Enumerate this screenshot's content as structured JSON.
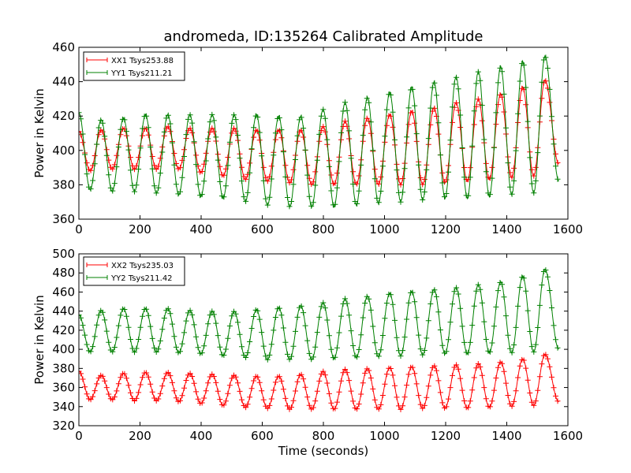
{
  "chart_data": [
    {
      "type": "line",
      "title": "andromeda, ID:135264 Calibrated Amplitude",
      "xlabel": "",
      "ylabel": "Power in Kelvin",
      "xlim": [
        0,
        1600
      ],
      "ylim": [
        360,
        460
      ],
      "xticks": [
        0,
        200,
        400,
        600,
        800,
        1000,
        1200,
        1400,
        1600
      ],
      "yticks": [
        360,
        380,
        400,
        420,
        440,
        460
      ],
      "grid": false,
      "legend_position": "top-left",
      "marker": "plus",
      "period_seconds": 72.6,
      "series": [
        {
          "name": "XX1 Tsys253.88",
          "color": "#ff0000",
          "start": {
            "x": 0,
            "y": 411
          },
          "end": {
            "x": 1570,
            "y": 392
          },
          "peaks": [
            [
              73,
              412
            ],
            [
              146,
              413
            ],
            [
              218,
              413
            ],
            [
              291,
              414
            ],
            [
              363,
              413
            ],
            [
              436,
              413
            ],
            [
              508,
              413
            ],
            [
              581,
              412
            ],
            [
              654,
              412
            ],
            [
              726,
              412
            ],
            [
              799,
              414
            ],
            [
              871,
              417
            ],
            [
              944,
              419
            ],
            [
              1017,
              421
            ],
            [
              1089,
              423
            ],
            [
              1162,
              425
            ],
            [
              1234,
              428
            ],
            [
              1307,
              430
            ],
            [
              1380,
              433
            ],
            [
              1452,
              437
            ],
            [
              1525,
              441
            ]
          ],
          "troughs": [
            [
              37,
              388
            ],
            [
              109,
              389
            ],
            [
              182,
              389
            ],
            [
              254,
              389
            ],
            [
              327,
              389
            ],
            [
              399,
              387
            ],
            [
              472,
              385
            ],
            [
              545,
              383
            ],
            [
              617,
              382
            ],
            [
              690,
              381
            ],
            [
              762,
              380
            ],
            [
              835,
              380
            ],
            [
              908,
              380
            ],
            [
              980,
              380
            ],
            [
              1053,
              380
            ],
            [
              1125,
              380
            ],
            [
              1198,
              381
            ],
            [
              1271,
              382
            ],
            [
              1343,
              383
            ],
            [
              1416,
              384
            ],
            [
              1488,
              385
            ]
          ]
        },
        {
          "name": "YY1 Tsys211.21",
          "color": "#008000",
          "start": {
            "x": 0,
            "y": 422
          },
          "end": {
            "x": 1570,
            "y": 382
          },
          "peaks": [
            [
              73,
              418
            ],
            [
              146,
              419
            ],
            [
              218,
              421
            ],
            [
              291,
              421
            ],
            [
              363,
              421
            ],
            [
              436,
              421
            ],
            [
              508,
              421
            ],
            [
              581,
              421
            ],
            [
              654,
              420
            ],
            [
              726,
              420
            ],
            [
              799,
              424
            ],
            [
              871,
              428
            ],
            [
              944,
              431
            ],
            [
              1017,
              434
            ],
            [
              1089,
              437
            ],
            [
              1162,
              440
            ],
            [
              1234,
              443
            ],
            [
              1307,
              446
            ],
            [
              1380,
              449
            ],
            [
              1452,
              452
            ],
            [
              1525,
              455
            ]
          ],
          "troughs": [
            [
              37,
              377
            ],
            [
              109,
              376
            ],
            [
              182,
              376
            ],
            [
              254,
              375
            ],
            [
              327,
              374
            ],
            [
              399,
              373
            ],
            [
              472,
              372
            ],
            [
              545,
              370
            ],
            [
              617,
              368
            ],
            [
              690,
              367
            ],
            [
              762,
              367
            ],
            [
              835,
              367
            ],
            [
              908,
              368
            ],
            [
              980,
              369
            ],
            [
              1053,
              370
            ],
            [
              1125,
              371
            ],
            [
              1198,
              372
            ],
            [
              1271,
              372
            ],
            [
              1343,
              373
            ],
            [
              1416,
              374
            ],
            [
              1488,
              375
            ]
          ]
        }
      ]
    },
    {
      "type": "line",
      "title": "",
      "xlabel": "Time (seconds)",
      "ylabel": "Power in Kelvin",
      "xlim": [
        0,
        1600
      ],
      "ylim": [
        320,
        500
      ],
      "xticks": [
        0,
        200,
        400,
        600,
        800,
        1000,
        1200,
        1400,
        1600
      ],
      "yticks": [
        320,
        340,
        360,
        380,
        400,
        420,
        440,
        460,
        480,
        500
      ],
      "grid": false,
      "legend_position": "top-left",
      "marker": "plus",
      "period_seconds": 72.6,
      "series": [
        {
          "name": "XX2 Tsys235.03",
          "color": "#ff0000",
          "start": {
            "x": 0,
            "y": 377
          },
          "end": {
            "x": 1570,
            "y": 345
          },
          "peaks": [
            [
              73,
              373
            ],
            [
              146,
              375
            ],
            [
              218,
              376
            ],
            [
              291,
              376
            ],
            [
              363,
              375
            ],
            [
              436,
              374
            ],
            [
              508,
              373
            ],
            [
              581,
              372
            ],
            [
              654,
              372
            ],
            [
              726,
              374
            ],
            [
              799,
              377
            ],
            [
              871,
              379
            ],
            [
              944,
              380
            ],
            [
              1017,
              381
            ],
            [
              1089,
              382
            ],
            [
              1162,
              383
            ],
            [
              1234,
              384
            ],
            [
              1307,
              385
            ],
            [
              1380,
              387
            ],
            [
              1452,
              390
            ],
            [
              1525,
              395
            ]
          ],
          "troughs": [
            [
              37,
              347
            ],
            [
              109,
              347
            ],
            [
              182,
              346
            ],
            [
              254,
              346
            ],
            [
              327,
              345
            ],
            [
              399,
              343
            ],
            [
              472,
              341
            ],
            [
              545,
              339
            ],
            [
              617,
              338
            ],
            [
              690,
              337
            ],
            [
              762,
              337
            ],
            [
              835,
              337
            ],
            [
              908,
              337
            ],
            [
              980,
              337
            ],
            [
              1053,
              337
            ],
            [
              1125,
              338
            ],
            [
              1198,
              338
            ],
            [
              1271,
              338
            ],
            [
              1343,
              339
            ],
            [
              1416,
              340
            ],
            [
              1488,
              341
            ]
          ]
        },
        {
          "name": "YY2 Tsys211.42",
          "color": "#008000",
          "start": {
            "x": 0,
            "y": 436
          },
          "end": {
            "x": 1570,
            "y": 400
          },
          "peaks": [
            [
              73,
              441
            ],
            [
              146,
              443
            ],
            [
              218,
              443
            ],
            [
              291,
              443
            ],
            [
              363,
              441
            ],
            [
              436,
              440
            ],
            [
              508,
              440
            ],
            [
              581,
              442
            ],
            [
              654,
              444
            ],
            [
              726,
              446
            ],
            [
              799,
              449
            ],
            [
              871,
              453
            ],
            [
              944,
              456
            ],
            [
              1017,
              459
            ],
            [
              1089,
              461
            ],
            [
              1162,
              463
            ],
            [
              1234,
              465
            ],
            [
              1307,
              468
            ],
            [
              1380,
              471
            ],
            [
              1452,
              477
            ],
            [
              1525,
              484
            ]
          ],
          "troughs": [
            [
              37,
              397
            ],
            [
              109,
              397
            ],
            [
              182,
              397
            ],
            [
              254,
              397
            ],
            [
              327,
              396
            ],
            [
              399,
              395
            ],
            [
              472,
              393
            ],
            [
              545,
              391
            ],
            [
              617,
              389
            ],
            [
              690,
              389
            ],
            [
              762,
              389
            ],
            [
              835,
              390
            ],
            [
              908,
              391
            ],
            [
              980,
              392
            ],
            [
              1053,
              393
            ],
            [
              1125,
              394
            ],
            [
              1198,
              395
            ],
            [
              1271,
              395
            ],
            [
              1343,
              396
            ],
            [
              1416,
              396
            ],
            [
              1488,
              397
            ]
          ]
        }
      ]
    }
  ]
}
